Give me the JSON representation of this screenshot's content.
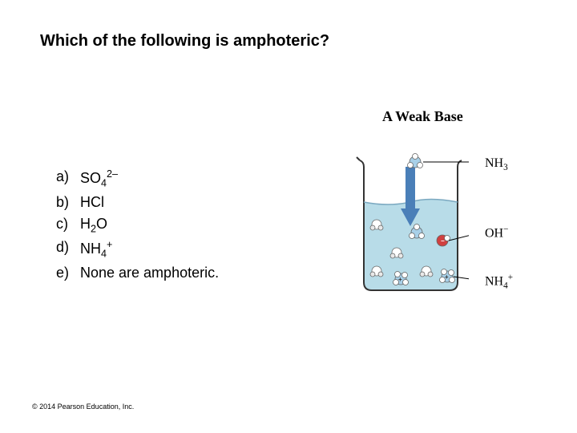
{
  "question": "Which of the following is amphoteric?",
  "options": {
    "a": {
      "letter": "a)",
      "html": "SO<sub>4</sub><sup>2–</sup>"
    },
    "b": {
      "letter": "b)",
      "html": "HCl"
    },
    "c": {
      "letter": "c)",
      "html": "H<sub>2</sub>O"
    },
    "d": {
      "letter": "d)",
      "html": "NH<sub>4</sub><sup>+</sup>"
    },
    "e": {
      "letter": "e)",
      "html": "None are amphoteric."
    }
  },
  "figure": {
    "title": "A Weak Base",
    "labels": {
      "nh3": "NH<sub>3</sub>",
      "oh": "OH<sup>−</sup>",
      "nh4": "NH<sub>4</sub><sup>+</sup>"
    },
    "colors": {
      "water": "#b8dce8",
      "nitrogen": "#a8d0e8",
      "hydrogen": "#ffffff",
      "oxygen": "#d04040",
      "arrow": "#4a7fb8",
      "atom_stroke": "#666666"
    }
  },
  "copyright": "© 2014 Pearson Education, Inc."
}
